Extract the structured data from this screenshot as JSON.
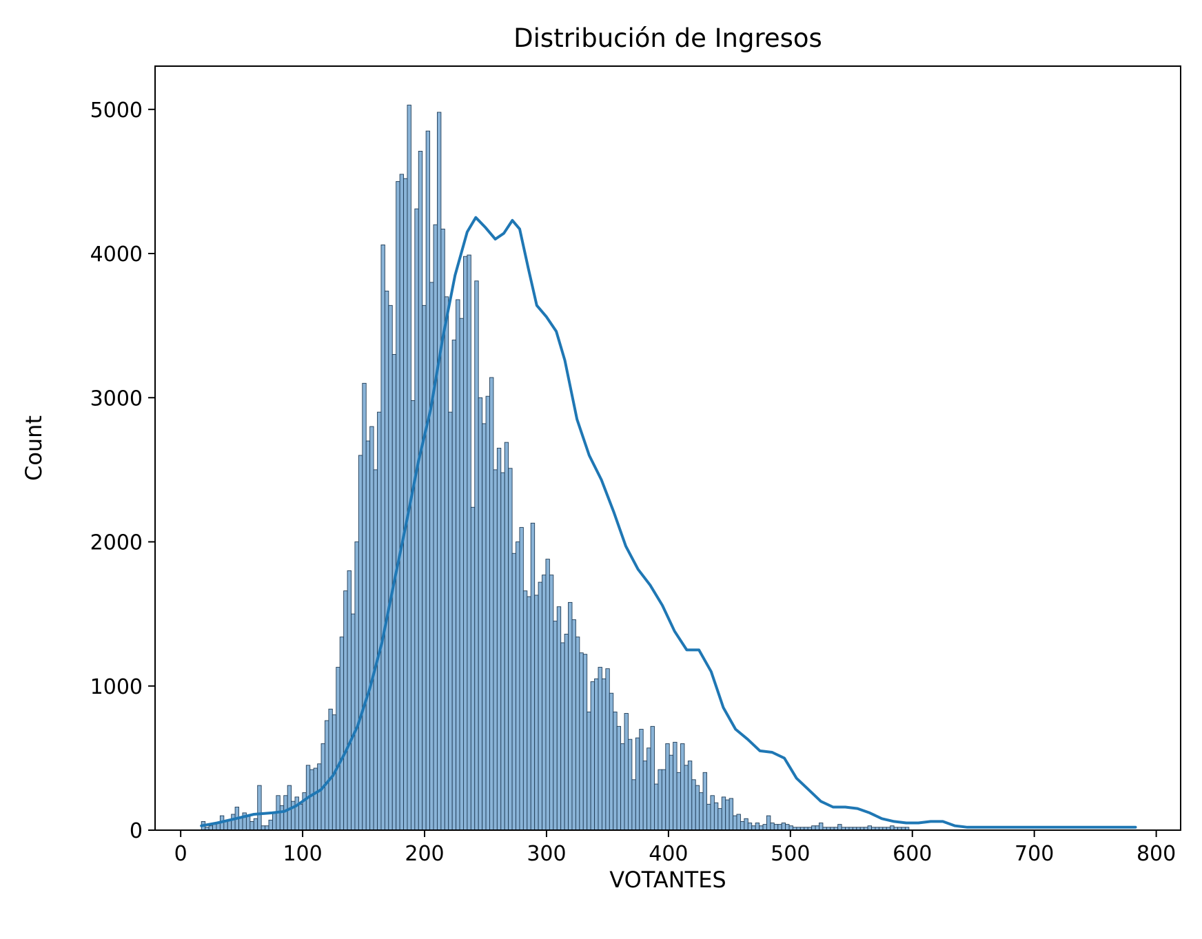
{
  "chart_data": {
    "type": "bar",
    "subtype": "histogram-with-kde",
    "title": "Distribución de Ingresos",
    "xlabel": "VOTANTES",
    "ylabel": "Count",
    "xlim": [
      -21,
      820
    ],
    "ylim": [
      0,
      5300
    ],
    "xticks": [
      0,
      100,
      200,
      300,
      400,
      500,
      600,
      700,
      800
    ],
    "yticks": [
      0,
      1000,
      2000,
      3000,
      4000,
      5000
    ],
    "grid": false,
    "legend": "none",
    "colors": {
      "bar_fill": "#8ab4d8",
      "bar_edge": "#1f3b55",
      "kde_line": "#1f77b4"
    },
    "bins": {
      "start": 17,
      "width": 3.07,
      "counts": [
        60,
        20,
        30,
        40,
        50,
        100,
        60,
        70,
        110,
        160,
        90,
        120,
        100,
        60,
        80,
        310,
        30,
        30,
        70,
        120,
        240,
        170,
        240,
        310,
        200,
        230,
        180,
        260,
        450,
        420,
        430,
        460,
        600,
        760,
        840,
        800,
        1130,
        1340,
        1660,
        1800,
        1500,
        2000,
        2600,
        3100,
        2700,
        2800,
        2500,
        2900,
        4060,
        3740,
        3640,
        3300,
        4500,
        4550,
        4520,
        5030,
        2980,
        4310,
        4710,
        3640,
        4850,
        3800,
        4200,
        4980,
        4170,
        3700,
        2900,
        3400,
        3680,
        3550,
        3980,
        3990,
        2240,
        3810,
        3000,
        2820,
        3010,
        3140,
        2500,
        2650,
        2480,
        2690,
        2510,
        1920,
        2000,
        2100,
        1660,
        1620,
        2130,
        1630,
        1720,
        1770,
        1880,
        1770,
        1450,
        1550,
        1300,
        1360,
        1580,
        1460,
        1340,
        1230,
        1220,
        820,
        1030,
        1050,
        1130,
        1050,
        1120,
        950,
        820,
        720,
        600,
        810,
        630,
        350,
        640,
        700,
        480,
        570,
        720,
        320,
        420,
        420,
        600,
        520,
        610,
        400,
        600,
        450,
        480,
        350,
        310,
        260,
        400,
        180,
        240,
        190,
        150,
        230,
        210,
        220,
        100,
        110,
        60,
        80,
        50,
        30,
        50,
        30,
        40,
        100,
        50,
        40,
        40,
        50,
        40,
        30,
        20,
        20,
        20,
        20,
        20,
        30,
        30,
        50,
        20,
        20,
        20,
        20,
        40,
        20,
        20,
        20,
        20,
        20,
        20,
        20,
        30,
        20,
        20,
        20,
        20,
        20,
        30,
        20,
        20,
        20,
        20
      ]
    },
    "kde": {
      "x": [
        17,
        30,
        45,
        60,
        75,
        85,
        95,
        105,
        115,
        125,
        135,
        145,
        155,
        165,
        175,
        185,
        195,
        205,
        215,
        225,
        235,
        242,
        250,
        258,
        265,
        272,
        278,
        285,
        292,
        300,
        308,
        315,
        325,
        335,
        345,
        355,
        365,
        375,
        385,
        395,
        405,
        415,
        425,
        435,
        445,
        455,
        465,
        475,
        485,
        495,
        505,
        515,
        525,
        535,
        545,
        555,
        565,
        575,
        585,
        595,
        605,
        615,
        625,
        635,
        645,
        655,
        665,
        680,
        700,
        720,
        740,
        760,
        783
      ],
      "y": [
        30,
        50,
        80,
        110,
        120,
        130,
        170,
        230,
        280,
        380,
        540,
        720,
        980,
        1300,
        1720,
        2130,
        2560,
        2920,
        3420,
        3850,
        4150,
        4250,
        4180,
        4100,
        4140,
        4230,
        4170,
        3900,
        3640,
        3560,
        3460,
        3260,
        2850,
        2600,
        2430,
        2210,
        1970,
        1810,
        1700,
        1560,
        1380,
        1250,
        1250,
        1100,
        850,
        700,
        630,
        550,
        540,
        500,
        360,
        280,
        200,
        160,
        160,
        150,
        120,
        80,
        60,
        50,
        50,
        60,
        60,
        30,
        20,
        20,
        20,
        20,
        20,
        20,
        20,
        20,
        20
      ]
    }
  }
}
